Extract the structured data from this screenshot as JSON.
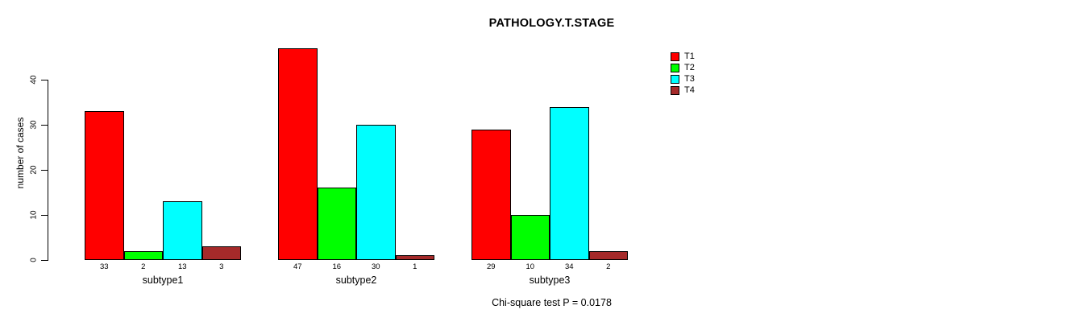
{
  "chart_data": {
    "type": "bar",
    "title": "PATHOLOGY.T.STAGE",
    "ylabel": "number of cases",
    "xlabel": "",
    "categories": [
      "subtype1",
      "subtype2",
      "subtype3"
    ],
    "series": [
      {
        "name": "T1",
        "color": "#ff0000",
        "values": [
          33,
          47,
          29
        ]
      },
      {
        "name": "T2",
        "color": "#00ff00",
        "values": [
          2,
          16,
          10
        ]
      },
      {
        "name": "T3",
        "color": "#00ffff",
        "values": [
          13,
          30,
          34
        ]
      },
      {
        "name": "T4",
        "color": "#a52a2a",
        "values": [
          3,
          1,
          2
        ]
      }
    ],
    "ylim": [
      0,
      40
    ],
    "yticks": [
      0,
      10,
      20,
      30,
      40
    ],
    "bar_value_labels": true,
    "grid": false,
    "legend_position": "top-right",
    "annotation": "Chi-square test P = 0.0178"
  },
  "colors": {
    "background": "#ffffff",
    "axis": "#000000",
    "text": "#000000"
  }
}
